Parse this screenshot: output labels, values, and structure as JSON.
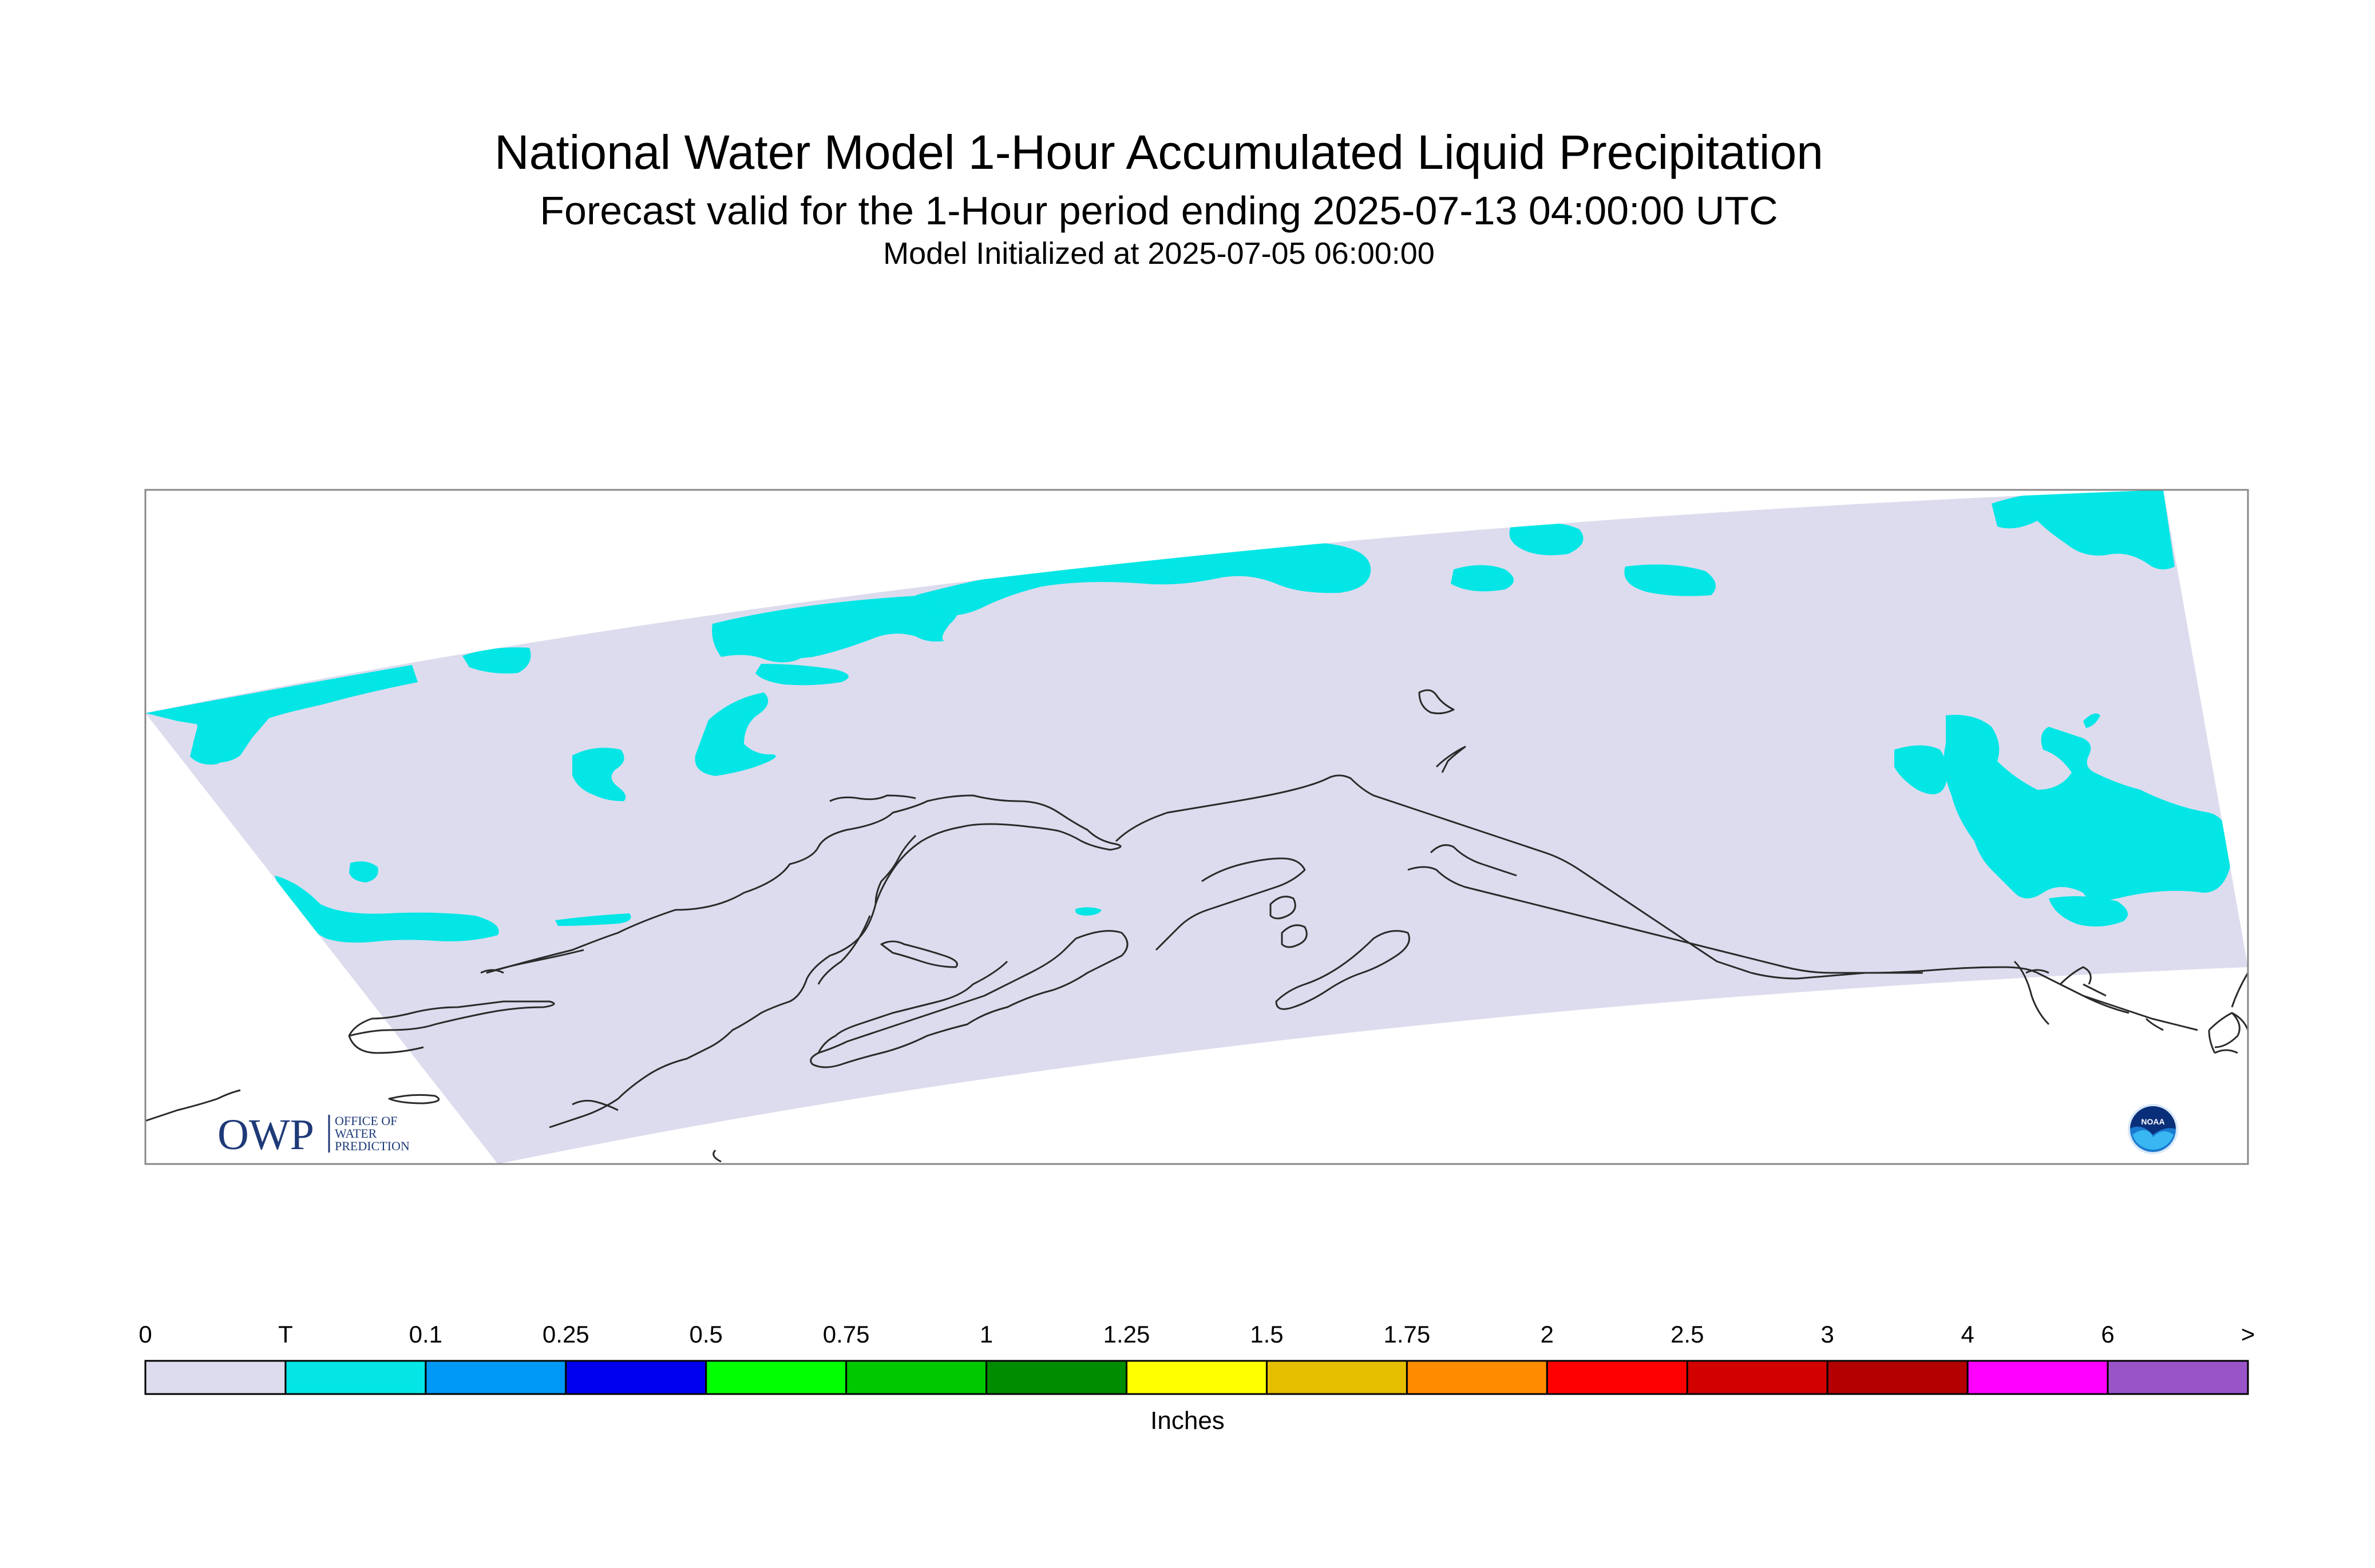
{
  "header": {
    "title": "National Water Model 1-Hour Accumulated Liquid Precipitation",
    "subtitle": "Forecast valid for the 1-Hour period ending 2025-07-13 04:00:00 UTC",
    "init": "Model Initialized at 2025-07-05 06:00:00"
  },
  "map": {
    "domain_fill": "#dcdcee",
    "precip_color": "#04e6e6",
    "coast_color": "#2a2a2a"
  },
  "logos": {
    "owp_letters": "OWP",
    "owp_line1": "OFFICE OF",
    "owp_line2": "WATER",
    "owp_line3": "PREDICTION",
    "noaa": "NOAA"
  },
  "legend": {
    "units": "Inches",
    "labels": [
      "0",
      "T",
      "0.1",
      "0.25",
      "0.5",
      "0.75",
      "1",
      "1.25",
      "1.5",
      "1.75",
      "2",
      "2.5",
      "3",
      "4",
      "6",
      ">"
    ],
    "colors": [
      "#dcdcee",
      "#04e6e6",
      "#0099f5",
      "#0000f0",
      "#00ff00",
      "#00c800",
      "#008c00",
      "#ffff00",
      "#e6be00",
      "#ff8c00",
      "#ff0000",
      "#d20000",
      "#b40000",
      "#ff00ff",
      "#9955c8"
    ]
  }
}
